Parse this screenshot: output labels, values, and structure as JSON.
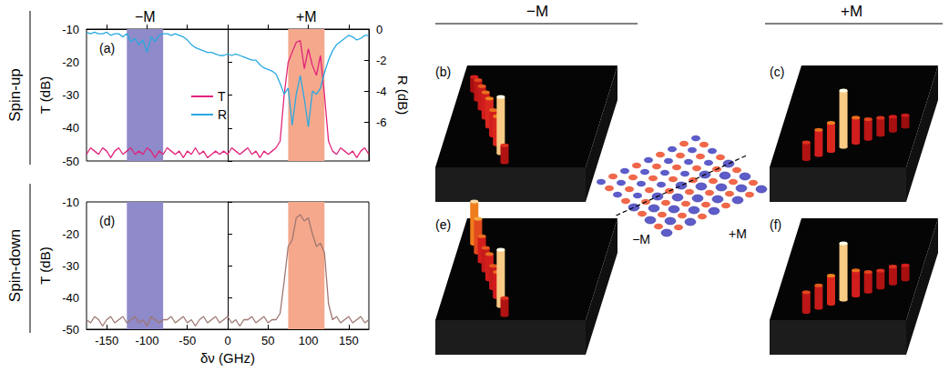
{
  "figure": {
    "columns": [
      "−M",
      "+M"
    ],
    "rows": [
      "Spin-up",
      "Spin-down"
    ],
    "field_panels": [
      {
        "label": "(b)",
        "intensity": [
          0.25,
          0.35,
          0.4,
          0.45,
          0.5,
          0.45,
          0.5,
          1.0,
          0.3
        ]
      },
      {
        "label": "(c)",
        "intensity": [
          0.3,
          0.45,
          0.5,
          1.0,
          0.45,
          0.35,
          0.3,
          0.25,
          0.2
        ]
      },
      {
        "label": "(e)",
        "intensity": [
          0.75,
          0.6,
          0.45,
          0.4,
          0.45,
          0.4,
          0.45,
          1.0,
          0.3
        ]
      },
      {
        "label": "(f)",
        "intensity": [
          0.35,
          0.4,
          0.5,
          1.0,
          0.45,
          0.35,
          0.3,
          0.3,
          0.25
        ]
      }
    ],
    "lattice_labels": [
      "−M",
      "+M"
    ]
  },
  "chart_data": [
    {
      "type": "line",
      "label": "(a)",
      "ylabel": "T (dB)",
      "y2label": "R (dB)",
      "x": [
        -175,
        -170,
        -165,
        -160,
        -155,
        -150,
        -145,
        -140,
        -135,
        -130,
        -125,
        -120,
        -115,
        -110,
        -105,
        -100,
        -95,
        -90,
        -85,
        -80,
        -75,
        -70,
        -65,
        -60,
        -55,
        -50,
        -45,
        -40,
        -35,
        -30,
        -25,
        -20,
        -15,
        -10,
        -5,
        0,
        5,
        10,
        15,
        20,
        25,
        30,
        35,
        40,
        45,
        50,
        55,
        60,
        65,
        70,
        75,
        80,
        85,
        90,
        95,
        100,
        105,
        110,
        115,
        120,
        125,
        130,
        135,
        140,
        145,
        150,
        155,
        160,
        165,
        170,
        175
      ],
      "series": [
        {
          "name": "T",
          "color": "#e2237c",
          "values": [
            -48,
            -46,
            -47,
            -48,
            -46,
            -47,
            -49,
            -47,
            -46,
            -48,
            -47,
            -46,
            -48,
            -47,
            -48,
            -46,
            -47,
            -49,
            -47,
            -48,
            -46,
            -47,
            -48,
            -47,
            -49,
            -47,
            -48,
            -46,
            -48,
            -47,
            -49,
            -48,
            -47,
            -48,
            -47,
            -48,
            -46,
            -47,
            -48,
            -47,
            -46,
            -48,
            -47,
            -49,
            -47,
            -48,
            -47,
            -46,
            -44,
            -30,
            -20,
            -17,
            -14,
            -13.5,
            -22,
            -16,
            -21,
            -24,
            -18,
            -30,
            -44,
            -47,
            -48,
            -46,
            -47,
            -48,
            -47,
            -49,
            -47,
            -46,
            -48
          ]
        },
        {
          "name": "R",
          "color": "#29a9e1",
          "axis": "y2",
          "values": [
            -0.2,
            -0.3,
            -0.2,
            -0.3,
            -0.3,
            -0.2,
            -0.4,
            -0.3,
            -0.3,
            -0.5,
            -0.3,
            -0.8,
            -0.6,
            -1.0,
            -0.7,
            -1.5,
            -0.5,
            -0.8,
            -0.4,
            -0.3,
            -0.3,
            -0.4,
            -0.3,
            -0.4,
            -0.5,
            -0.7,
            -1.0,
            -1.2,
            -1.3,
            -1.4,
            -1.5,
            -1.5,
            -1.6,
            -1.7,
            -1.7,
            -1.6,
            -1.7,
            -1.6,
            -1.7,
            -1.8,
            -1.9,
            -2.0,
            -2.0,
            -2.3,
            -2.5,
            -2.6,
            -2.7,
            -2.9,
            -3.5,
            -4.2,
            -3.8,
            -6.2,
            -4.2,
            -3.0,
            -4.5,
            -6.3,
            -4.0,
            -4.2,
            -3.8,
            -2.8,
            -2.0,
            -1.4,
            -1.0,
            -0.8,
            -0.6,
            -0.4,
            -0.5,
            -0.7,
            -0.6,
            -0.4,
            -0.4
          ]
        }
      ],
      "bands": [
        {
          "label": "−M",
          "range": [
            -125,
            -80
          ],
          "color": "#8f8ac9"
        },
        {
          "label": "+M",
          "range": [
            75,
            120
          ],
          "color": "#f5a88c"
        }
      ],
      "xlim": [
        -175,
        175
      ],
      "xticks": [
        -150,
        -100,
        -50,
        0,
        50,
        100,
        150
      ],
      "ylim": [
        -50,
        -10
      ],
      "yticks": [
        -50,
        -40,
        -30,
        -20,
        -10
      ],
      "y2lim": [
        -8.5,
        0
      ],
      "y2ticks": [
        -6,
        -4,
        -2,
        0
      ],
      "tick_labels": "y",
      "legend": "center",
      "grid": false
    },
    {
      "type": "line",
      "label": "(d)",
      "xlabel": "δν (GHz)",
      "ylabel": "T (dB)",
      "x": [
        -175,
        -170,
        -165,
        -160,
        -155,
        -150,
        -145,
        -140,
        -135,
        -130,
        -125,
        -120,
        -115,
        -110,
        -105,
        -100,
        -95,
        -90,
        -85,
        -80,
        -75,
        -70,
        -65,
        -60,
        -55,
        -50,
        -45,
        -40,
        -35,
        -30,
        -25,
        -20,
        -15,
        -10,
        -5,
        0,
        5,
        10,
        15,
        20,
        25,
        30,
        35,
        40,
        45,
        50,
        55,
        60,
        65,
        70,
        75,
        80,
        85,
        90,
        95,
        100,
        105,
        110,
        115,
        120,
        125,
        130,
        135,
        140,
        145,
        150,
        155,
        160,
        165,
        170,
        175
      ],
      "series": [
        {
          "color": "#9e7672",
          "values": [
            -47,
            -48,
            -46,
            -47,
            -49,
            -47,
            -46,
            -48,
            -47,
            -46,
            -48,
            -47,
            -46,
            -48,
            -47,
            -49,
            -46,
            -47,
            -48,
            -47,
            -47,
            -46,
            -48,
            -47,
            -46,
            -48,
            -47,
            -49,
            -47,
            -46,
            -48,
            -47,
            -46,
            -48,
            -47,
            -46,
            -48,
            -47,
            -49,
            -47,
            -47,
            -46,
            -48,
            -47,
            -46,
            -48,
            -47,
            -47,
            -45,
            -35,
            -24,
            -22,
            -15,
            -14,
            -16,
            -15,
            -20,
            -24,
            -23,
            -26,
            -42,
            -47,
            -46,
            -48,
            -47,
            -46,
            -48,
            -47,
            -46,
            -48,
            -47
          ]
        }
      ],
      "bands": [
        {
          "range": [
            -125,
            -80
          ],
          "color": "#8f8ac9"
        },
        {
          "range": [
            75,
            120
          ],
          "color": "#f5a88c"
        }
      ],
      "xlim": [
        -175,
        175
      ],
      "xticks": [
        -150,
        -100,
        -50,
        0,
        50,
        100,
        150
      ],
      "ylim": [
        -50,
        -10
      ],
      "yticks": [
        -50,
        -40,
        -30,
        -20,
        -10
      ],
      "grid": false
    }
  ]
}
